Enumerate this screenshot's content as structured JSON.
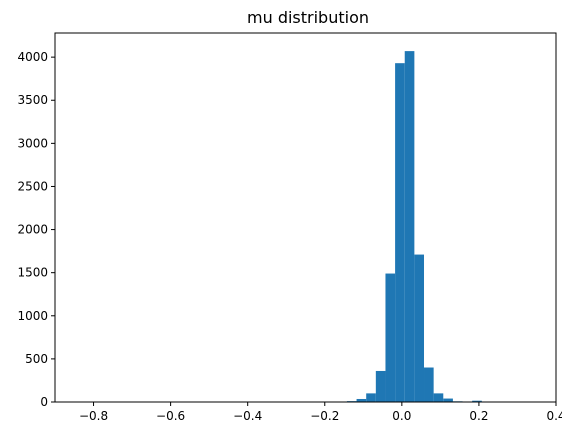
{
  "chart_data": {
    "type": "bar",
    "title": "mu distribution",
    "xlabel": "",
    "ylabel": "",
    "xlim": [
      -0.9,
      0.4
    ],
    "ylim": [
      0,
      4280
    ],
    "xticks": [
      -0.8,
      -0.6,
      -0.4,
      -0.2,
      0.0,
      0.2,
      0.4
    ],
    "xtick_labels": [
      "−0.8",
      "−0.6",
      "−0.4",
      "−0.2",
      "0.0",
      "0.2",
      "0.4"
    ],
    "yticks": [
      0,
      500,
      1000,
      1500,
      2000,
      2500,
      3000,
      3500,
      4000
    ],
    "ytick_labels": [
      "0",
      "500",
      "1000",
      "1500",
      "2000",
      "2500",
      "3000",
      "3500",
      "4000"
    ],
    "bar_color": "#1f77b4",
    "grid": false,
    "bins": [
      {
        "x0": -0.1425,
        "x1": -0.1175,
        "count": 10
      },
      {
        "x0": -0.1175,
        "x1": -0.0925,
        "count": 35
      },
      {
        "x0": -0.0925,
        "x1": -0.0675,
        "count": 100
      },
      {
        "x0": -0.0675,
        "x1": -0.0425,
        "count": 360
      },
      {
        "x0": -0.0425,
        "x1": -0.0175,
        "count": 1490
      },
      {
        "x0": -0.0175,
        "x1": 0.0075,
        "count": 3930
      },
      {
        "x0": 0.0075,
        "x1": 0.0325,
        "count": 4070
      },
      {
        "x0": 0.0325,
        "x1": 0.0575,
        "count": 1710
      },
      {
        "x0": 0.0575,
        "x1": 0.0825,
        "count": 400
      },
      {
        "x0": 0.0825,
        "x1": 0.1075,
        "count": 100
      },
      {
        "x0": 0.1075,
        "x1": 0.1325,
        "count": 40
      },
      {
        "x0": 0.1325,
        "x1": 0.1575,
        "count": 8
      },
      {
        "x0": 0.1825,
        "x1": 0.2075,
        "count": 15
      },
      {
        "x0": 0.2075,
        "x1": 0.2325,
        "count": 5
      }
    ]
  }
}
